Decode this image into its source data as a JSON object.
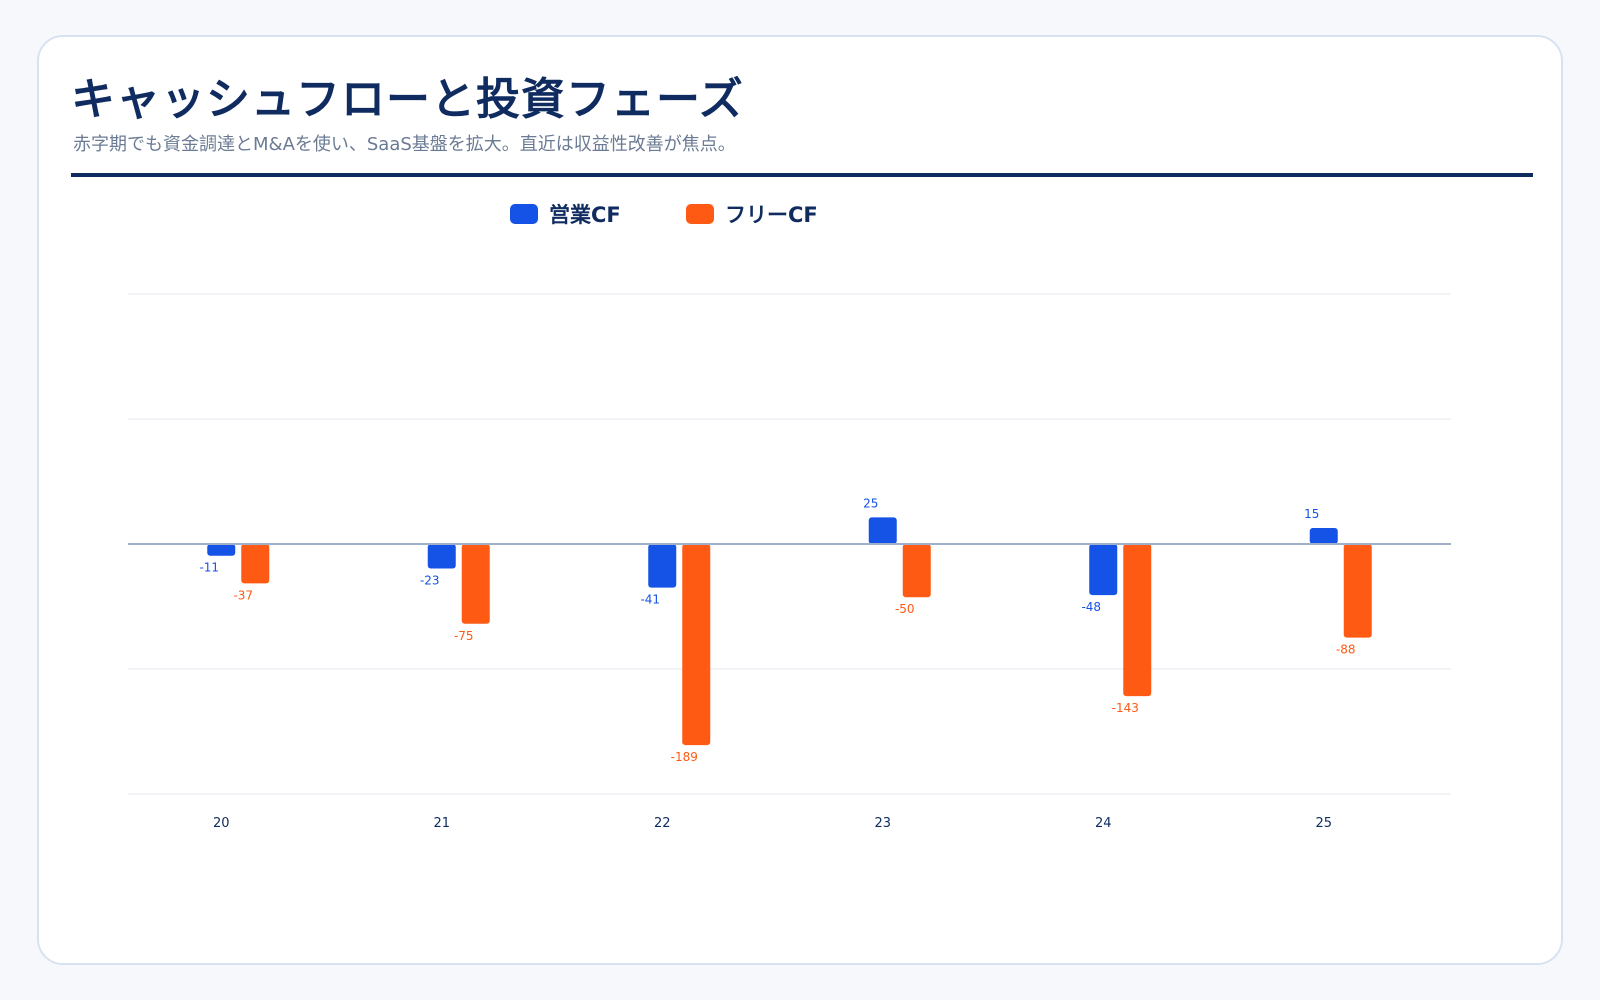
{
  "header": {
    "title": "キャッシュフローと投資フェーズ",
    "subtitle": "赤字期でも資金調達とM&Aを使い、SaaS基盤を拡大。直近は収益性改善が焦点。"
  },
  "colors": {
    "operating": "#1553e6",
    "free": "#ff5a14",
    "title": "#0f2b5f",
    "grid": "#e3e7ee"
  },
  "chart_data": {
    "type": "bar",
    "categories": [
      "20",
      "21",
      "22",
      "23",
      "24",
      "25"
    ],
    "series": [
      {
        "name": "営業CF",
        "values": [
          -11,
          -23,
          -41,
          25,
          -48,
          15
        ]
      },
      {
        "name": "フリーCF",
        "values": [
          -37,
          -75,
          -189,
          -50,
          -143,
          -88
        ]
      }
    ],
    "ylim": [
      -235,
      235
    ],
    "legend": "top-center",
    "grid": true,
    "data_labels": true
  }
}
